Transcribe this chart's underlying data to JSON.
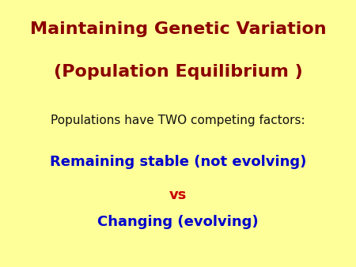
{
  "background_color": "#FFFF99",
  "title_line1": "Maintaining Genetic Variation",
  "title_line2": "(Population Equilibrium )",
  "title_color": "#8B0000",
  "title_fontsize": 16,
  "body_text": "Populations have TWO competing factors:",
  "body_color": "#111111",
  "body_fontsize": 11,
  "line1_text": "Remaining stable (not evolving)",
  "line1_color": "#0000CC",
  "line1_fontsize": 13,
  "vs_text": "vs",
  "vs_color": "#CC0000",
  "vs_fontsize": 13,
  "line2_text": "Changing (evolving)",
  "line2_color": "#0000CC",
  "line2_fontsize": 13,
  "fig_width": 4.5,
  "fig_height": 3.38,
  "dpi": 100
}
